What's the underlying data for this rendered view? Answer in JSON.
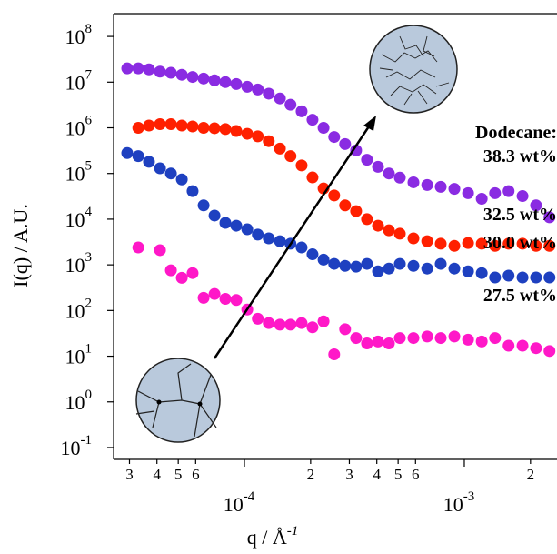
{
  "chart_data": {
    "type": "scatter",
    "ylabel": "I(q) / A.U.",
    "xlabel": "q / Å",
    "xlabel_exponent": "-1",
    "annotation": "Dodecane:",
    "xscale": "log",
    "yscale": "log",
    "xlim": [
      2.54e-05,
      0.00264
    ],
    "ylim": [
      0.055,
      316000000
    ],
    "xticks": [
      {
        "value": 3e-05,
        "label": "3"
      },
      {
        "value": 4e-05,
        "label": "4"
      },
      {
        "value": 5e-05,
        "label": "5"
      },
      {
        "value": 6e-05,
        "label": "6"
      },
      {
        "value": 0.0001,
        "label": "10",
        "exponent": "-4"
      },
      {
        "value": 0.0002,
        "label": "2"
      },
      {
        "value": 0.0003,
        "label": "3"
      },
      {
        "value": 0.0004,
        "label": "4"
      },
      {
        "value": 0.0005,
        "label": "5"
      },
      {
        "value": 0.0006,
        "label": "6"
      },
      {
        "value": 0.001,
        "label": "10",
        "exponent": "-3"
      },
      {
        "value": 0.002,
        "label": "2"
      }
    ],
    "yticks": [
      {
        "value": 100000000,
        "label": "10",
        "exponent": "8"
      },
      {
        "value": 10000000,
        "label": "10",
        "exponent": "7"
      },
      {
        "value": 1000000,
        "label": "10",
        "exponent": "6"
      },
      {
        "value": 100000,
        "label": "10",
        "exponent": "5"
      },
      {
        "value": 10000,
        "label": "10",
        "exponent": "4"
      },
      {
        "value": 1000,
        "label": "10",
        "exponent": "3"
      },
      {
        "value": 100,
        "label": "10",
        "exponent": "2"
      },
      {
        "value": 10,
        "label": "10",
        "exponent": "1"
      },
      {
        "value": 1,
        "label": "10",
        "exponent": "0"
      },
      {
        "value": 0.1,
        "label": "10",
        "exponent": "-1"
      }
    ],
    "x": [
      2.93e-05,
      3.29e-05,
      3.68e-05,
      4.13e-05,
      4.63e-05,
      5.19e-05,
      5.81e-05,
      6.52e-05,
      7.31e-05,
      8.19e-05,
      9.18e-05,
      0.000103,
      0.000115,
      0.000129,
      0.000145,
      0.000162,
      0.000182,
      0.000204,
      0.000229,
      0.000256,
      0.000287,
      0.000322,
      0.000361,
      0.000405,
      0.000454,
      0.000509,
      0.000587,
      0.000678,
      0.000781,
      0.000901,
      0.00104,
      0.0012,
      0.00138,
      0.00159,
      0.00184,
      0.00212,
      0.00244
    ],
    "series": [
      {
        "name": "38.3 wt%",
        "color": "#8a2be2",
        "values": [
          20000000,
          20000000,
          19000000,
          17000000,
          16000000,
          14500000,
          13000000,
          12000000,
          11000000,
          10000000,
          9100000,
          7900000,
          6900000,
          5600000,
          4400000,
          3200000,
          2300000,
          1500000,
          1000000,
          630000,
          440000,
          320000,
          200000,
          140000,
          100000,
          81000,
          64000,
          56000,
          51000,
          46000,
          37000,
          28000,
          37000,
          41000,
          32000,
          20000,
          11000
        ]
      },
      {
        "name": "32.5 wt%",
        "color": "#ff2000",
        "values": [
          null,
          1000000,
          1120000,
          1200000,
          1200000,
          1120000,
          1070000,
          1000000,
          980000,
          940000,
          850000,
          740000,
          650000,
          510000,
          350000,
          240000,
          150000,
          82000,
          47000,
          33000,
          20000,
          15000,
          10000,
          7200,
          5700,
          4800,
          3800,
          3300,
          2900,
          2600,
          3000,
          2900,
          2600,
          2900,
          2900,
          2600,
          2600
        ]
      },
      {
        "name": "30.0 wt%",
        "color": "#1e40c0",
        "values": [
          280000,
          240000,
          180000,
          130000,
          100000,
          74000,
          41000,
          20000,
          12000,
          8300,
          7200,
          6000,
          4600,
          3800,
          3300,
          2900,
          2400,
          1700,
          1300,
          1050,
          950,
          910,
          1050,
          720,
          830,
          1050,
          950,
          830,
          1050,
          830,
          720,
          660,
          530,
          580,
          530,
          530,
          530
        ]
      },
      {
        "name": "27.5 wt%",
        "color": "#ff18c8",
        "values": [
          null,
          2400,
          null,
          2100,
          760,
          520,
          660,
          190,
          230,
          180,
          170,
          105,
          66,
          53,
          49,
          49,
          53,
          43,
          58,
          11,
          39,
          25,
          19,
          21,
          19,
          25,
          25,
          27,
          25,
          27,
          23,
          21,
          25,
          17,
          17,
          15,
          13
        ]
      }
    ]
  }
}
